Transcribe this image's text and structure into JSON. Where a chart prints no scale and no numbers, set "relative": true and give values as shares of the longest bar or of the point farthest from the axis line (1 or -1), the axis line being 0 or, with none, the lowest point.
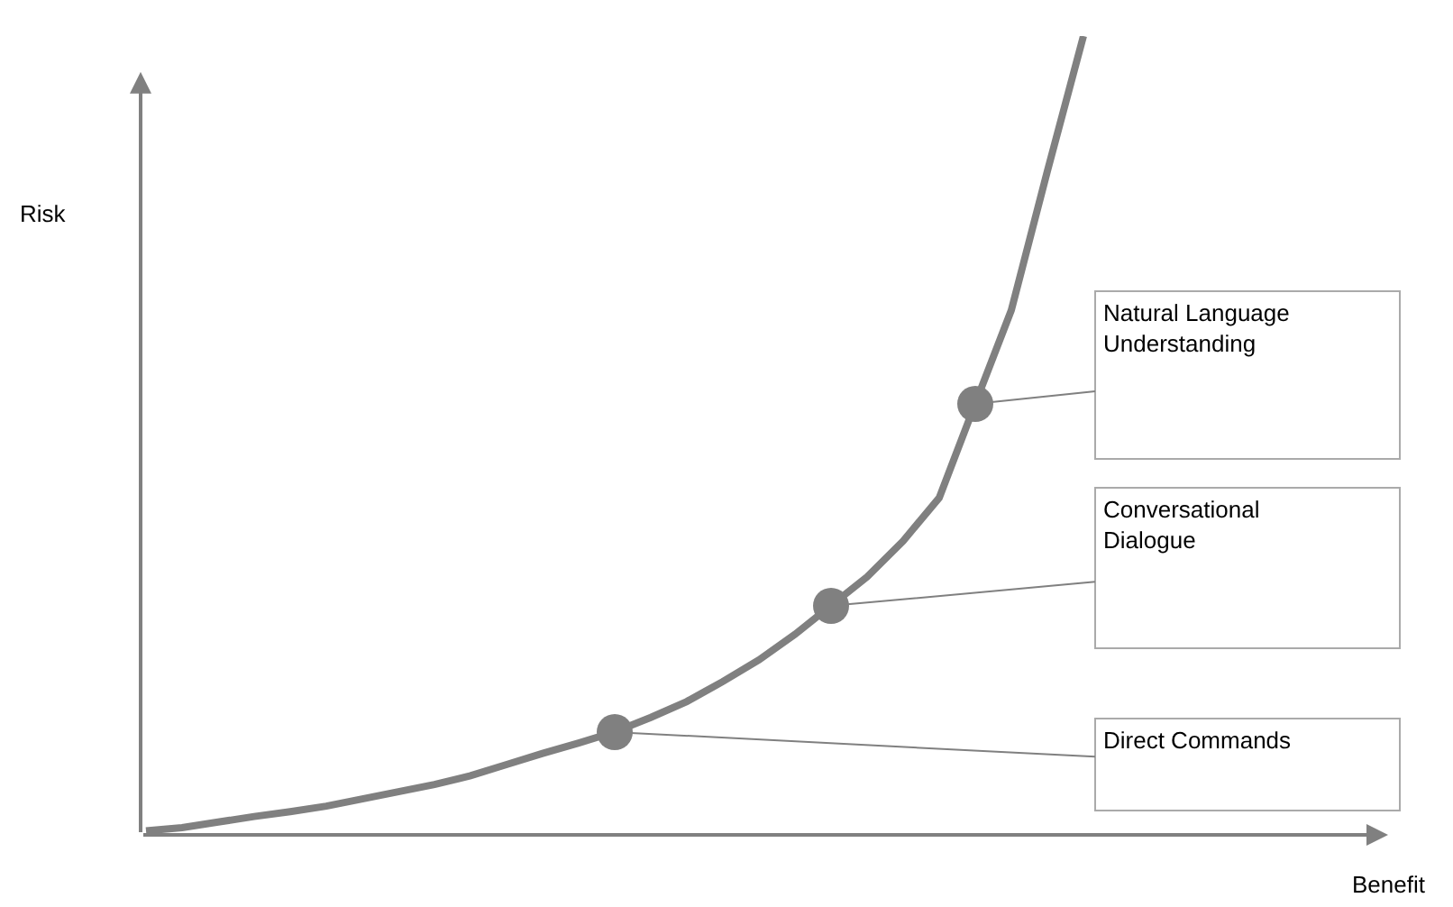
{
  "chart_data": {
    "type": "line",
    "relative": true,
    "ylabel": "Risk",
    "legend": false,
    "categories": [
      null,
      null,
      null,
      null,
      null,
      null,
      null,
      null,
      null,
      null,
      null,
      null,
      null,
      null,
      null,
      null,
      null,
      null,
      null,
      null,
      null,
      null,
      null,
      null,
      null,
      null,
      null
    ],
    "series": [
      {
        "color": "#808080",
        "marker": "none",
        "values": [
          0.005,
          0.009,
          0.016,
          0.023,
          0.029,
          0.036,
          0.045,
          0.054,
          0.063,
          0.074,
          0.088,
          0.102,
          0.115,
          0.129,
          0.147,
          0.167,
          0.192,
          0.219,
          0.251,
          0.287,
          0.323,
          0.368,
          0.422,
          0.54,
          0.657,
          0.831,
          1
        ]
      }
    ],
    "annotations": [
      "Natural Language\nUnderstanding",
      "Conversational\nDialogue",
      "Direct Commands",
      "Benefit"
    ]
  }
}
